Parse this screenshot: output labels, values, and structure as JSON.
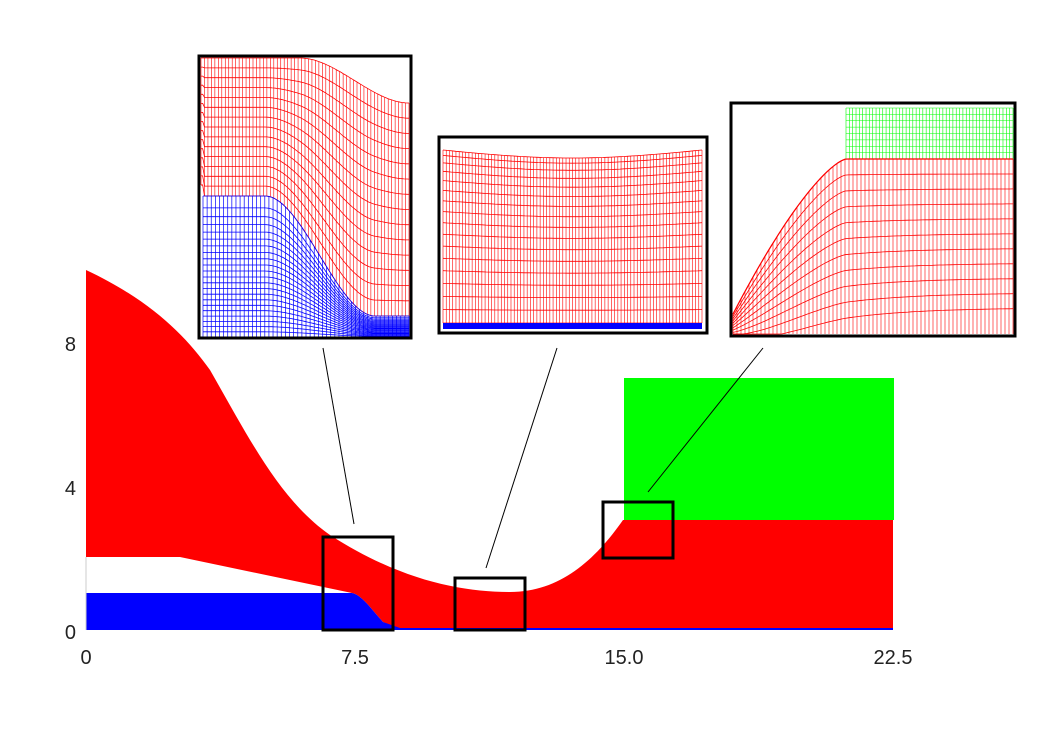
{
  "colors": {
    "region_upper": "#ff0000",
    "region_lower": "#0000ff",
    "region_right": "#00ff00",
    "frame": "#000000",
    "background": "#ffffff"
  },
  "axes": {
    "x_ticks": [
      "0",
      "7.5",
      "15.0",
      "22.5"
    ],
    "y_ticks": [
      "0",
      "4",
      "8"
    ],
    "x_range": [
      0,
      22.5
    ],
    "y_range": [
      0,
      10
    ]
  },
  "insets": [
    {
      "id": "inset-left",
      "content": "mesh-red-over-blue-step"
    },
    {
      "id": "inset-middle",
      "content": "mesh-red-over-blue-thin-layer"
    },
    {
      "id": "inset-right",
      "content": "mesh-red-green-corner"
    }
  ]
}
